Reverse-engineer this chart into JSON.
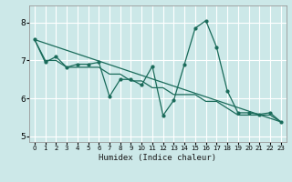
{
  "xlabel": "Humidex (Indice chaleur)",
  "bg_color": "#cce8e8",
  "grid_color": "#ffffff",
  "line_color": "#1a6b5a",
  "xlim": [
    -0.5,
    23.5
  ],
  "ylim": [
    4.85,
    8.45
  ],
  "yticks": [
    5,
    6,
    7,
    8
  ],
  "xticks": [
    0,
    1,
    2,
    3,
    4,
    5,
    6,
    7,
    8,
    9,
    10,
    11,
    12,
    13,
    14,
    15,
    16,
    17,
    18,
    19,
    20,
    21,
    22,
    23
  ],
  "series1_x": [
    0,
    1,
    2,
    3,
    4,
    5,
    6,
    7,
    8,
    9,
    10,
    11,
    12,
    13,
    14,
    15,
    16,
    17,
    18,
    19,
    20,
    21,
    22,
    23
  ],
  "series1_y": [
    7.55,
    6.95,
    7.1,
    6.82,
    6.9,
    6.9,
    6.95,
    6.05,
    6.5,
    6.5,
    6.35,
    6.85,
    5.55,
    5.95,
    6.9,
    7.85,
    8.05,
    7.35,
    6.2,
    5.62,
    5.62,
    5.58,
    5.62,
    5.38
  ],
  "series2_x": [
    0,
    1,
    2,
    3,
    4,
    5,
    6,
    7,
    8,
    9,
    10,
    11,
    12,
    13,
    14,
    15,
    16,
    17,
    18,
    19,
    20,
    21,
    22,
    23
  ],
  "series2_y": [
    7.55,
    7.0,
    7.0,
    6.82,
    6.82,
    6.82,
    6.82,
    6.64,
    6.64,
    6.46,
    6.46,
    6.28,
    6.28,
    6.1,
    6.1,
    6.1,
    5.92,
    5.92,
    5.74,
    5.56,
    5.56,
    5.56,
    5.56,
    5.38
  ],
  "series3_x": [
    0,
    23
  ],
  "series3_y": [
    7.55,
    5.38
  ]
}
